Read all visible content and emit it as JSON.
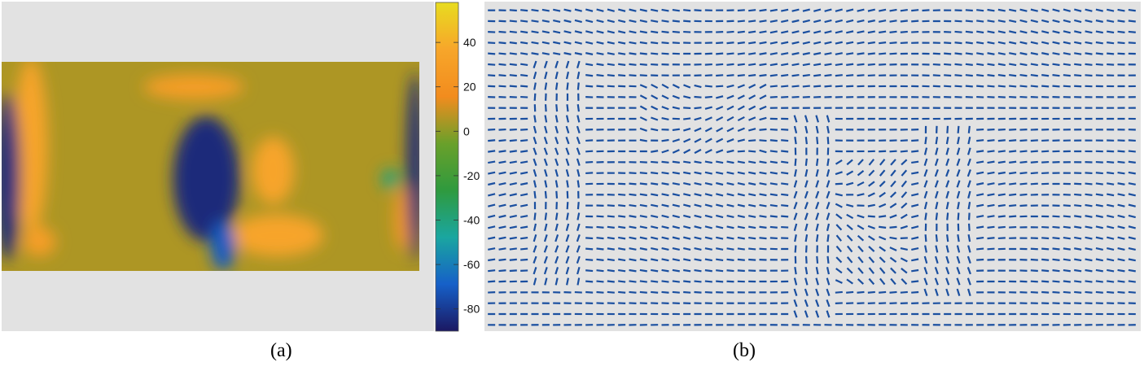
{
  "figure": {
    "panel_a_label": "(a)",
    "panel_b_label": "(b)"
  },
  "chart_data": [
    {
      "type": "heatmap",
      "panel": "(a)",
      "colorbar": {
        "ticks": [
          40,
          20,
          0,
          -20,
          -40,
          -60,
          -80
        ],
        "range": [
          -90,
          58
        ],
        "colormap": [
          "#1b1862",
          "#1660c8",
          "#1aa6a0",
          "#2f9a3e",
          "#6aa02a",
          "#f28c1e",
          "#f7a62a",
          "#e8dc20"
        ]
      },
      "field_regions": [
        {
          "label": "high",
          "value": 35,
          "cx": 0.07,
          "cy": 0.4,
          "rx": 0.04,
          "ry": 0.42
        },
        {
          "label": "high",
          "value": 30,
          "cx": 0.09,
          "cy": 0.86,
          "rx": 0.04,
          "ry": 0.07
        },
        {
          "label": "high",
          "value": 30,
          "cx": 0.46,
          "cy": 0.12,
          "rx": 0.12,
          "ry": 0.06
        },
        {
          "label": "high",
          "value": 35,
          "cx": 0.65,
          "cy": 0.52,
          "rx": 0.05,
          "ry": 0.16
        },
        {
          "label": "high",
          "value": 35,
          "cx": 0.66,
          "cy": 0.83,
          "rx": 0.11,
          "ry": 0.1
        },
        {
          "label": "high",
          "value": 25,
          "cx": 0.96,
          "cy": 0.75,
          "rx": 0.02,
          "ry": 0.15
        },
        {
          "label": "low",
          "value": -85,
          "cx": 0.015,
          "cy": 0.55,
          "rx": 0.03,
          "ry": 0.4
        },
        {
          "label": "low",
          "value": -85,
          "cx": 0.49,
          "cy": 0.56,
          "rx": 0.08,
          "ry": 0.3
        },
        {
          "label": "low",
          "value": -70,
          "cx": 0.53,
          "cy": 0.88,
          "rx": 0.03,
          "ry": 0.12
        },
        {
          "label": "low",
          "value": -85,
          "cx": 0.99,
          "cy": 0.5,
          "rx": 0.02,
          "ry": 0.45
        },
        {
          "label": "low",
          "value": -40,
          "cx": 0.93,
          "cy": 0.56,
          "rx": 0.02,
          "ry": 0.05
        }
      ]
    },
    {
      "type": "scatter",
      "panel": "(b)",
      "marker": "oriented line segment",
      "color": "#1a4fa0",
      "grid": {
        "cols": 60,
        "rows": 30
      }
    }
  ]
}
